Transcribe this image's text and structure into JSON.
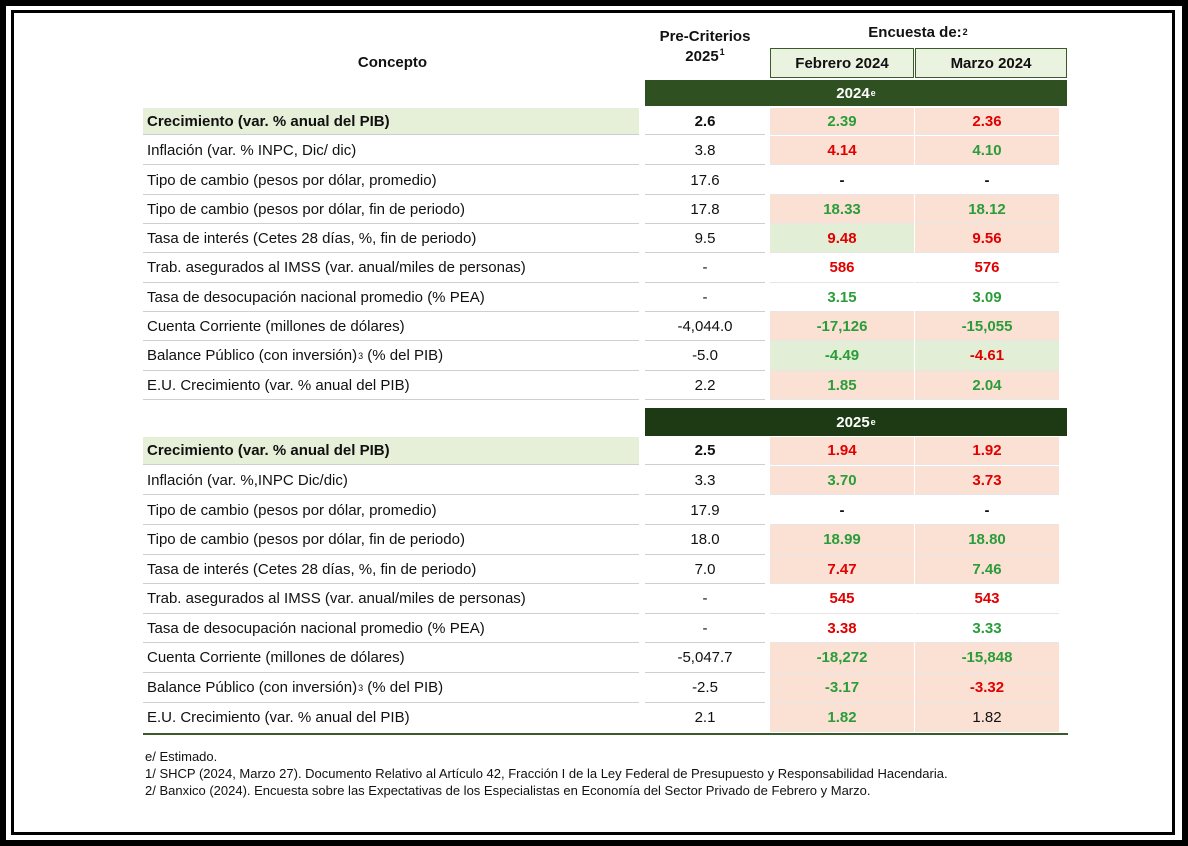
{
  "header": {
    "concepto": "Concepto",
    "pre_criterios_line1": "Pre-Criterios",
    "pre_criterios_line2": "2025",
    "pre_criterios_sup": "1",
    "encuesta": "Encuesta de:",
    "encuesta_sup": "2",
    "febrero": "Febrero 2024",
    "marzo": "Marzo 2024"
  },
  "sections": [
    {
      "year": "2024",
      "year_sup": "e",
      "rows": [
        {
          "label": "Crecimiento (var. % anual del PIB)",
          "precriterios": "2.6",
          "feb": "2.39",
          "mar": "2.36"
        },
        {
          "label": "Inflación (var. % INPC, Dic/ dic)",
          "precriterios": "3.8",
          "feb": "4.14",
          "mar": "4.10"
        },
        {
          "label": "Tipo de cambio (pesos por dólar, promedio)",
          "precriterios": "17.6",
          "feb": "-",
          "mar": "-"
        },
        {
          "label": "Tipo de cambio (pesos por dólar, fin de periodo)",
          "precriterios": "17.8",
          "feb": "18.33",
          "mar": "18.12"
        },
        {
          "label": "Tasa de interés (Cetes 28 días, %, fin de periodo)",
          "precriterios": "9.5",
          "feb": "9.48",
          "mar": "9.56"
        },
        {
          "label": "Trab. asegurados al IMSS (var. anual/miles de personas)",
          "precriterios": "-",
          "feb": "586",
          "mar": "576"
        },
        {
          "label": "Tasa de desocupación nacional promedio (% PEA)",
          "precriterios": "-",
          "feb": "3.15",
          "mar": "3.09"
        },
        {
          "label": "Cuenta Corriente (millones de dólares)",
          "precriterios": "-4,044.0",
          "feb": "-17,126",
          "mar": "-15,055"
        },
        {
          "label": "Balance Público (con inversión)",
          "label_sup": "3",
          "label_tail": " (% del PIB)",
          "precriterios": "-5.0",
          "feb": "-4.49",
          "mar": "-4.61"
        },
        {
          "label": "E.U. Crecimiento (var. % anual del PIB)",
          "precriterios": "2.2",
          "feb": "1.85",
          "mar": "2.04"
        }
      ]
    },
    {
      "year": "2025",
      "year_sup": "e",
      "rows": [
        {
          "label": "Crecimiento (var. % anual del PIB)",
          "precriterios": "2.5",
          "feb": "1.94",
          "mar": "1.92"
        },
        {
          "label": "Inflación (var. %,INPC  Dic/dic)",
          "precriterios": "3.3",
          "feb": "3.70",
          "mar": "3.73"
        },
        {
          "label": "Tipo de cambio (pesos por dólar, promedio)",
          "precriterios": "17.9",
          "feb": "-",
          "mar": "-"
        },
        {
          "label": "Tipo de cambio (pesos por dólar, fin de periodo)",
          "precriterios": "18.0",
          "feb": "18.99",
          "mar": "18.80"
        },
        {
          "label": "Tasa de interés (Cetes 28 días, %, fin de periodo)",
          "precriterios": "7.0",
          "feb": "7.47",
          "mar": "7.46"
        },
        {
          "label": "Trab. asegurados al IMSS (var. anual/miles de personas)",
          "precriterios": "-",
          "feb": "545",
          "mar": "543"
        },
        {
          "label": "Tasa de desocupación nacional promedio (% PEA)",
          "precriterios": "-",
          "feb": "3.38",
          "mar": "3.33"
        },
        {
          "label": "Cuenta Corriente (millones de dólares)",
          "precriterios": "-5,047.7",
          "feb": "-18,272",
          "mar": "-15,848"
        },
        {
          "label": "Balance Público (con inversión)",
          "label_sup": "3",
          "label_tail": " (% del PIB)",
          "precriterios": "-2.5",
          "feb": "-3.17",
          "mar": "-3.32"
        },
        {
          "label": "E.U. Crecimiento (var. % anual del PIB)",
          "precriterios": "2.1",
          "feb": "1.82",
          "mar": "1.82"
        }
      ]
    }
  ],
  "notes": [
    "e/ Estimado.",
    "1/ SHCP (2024, Marzo 27). Documento Relativo al Artículo 42, Fracción I de la Ley Federal de Presupuesto y Responsabilidad Hacendaria.",
    "2/ Banxico (2024). Encuesta sobre las Expectativas de los Especialistas en Economía del Sector Privado de Febrero y Marzo."
  ],
  "colors": {
    "header_dark_green": "#2f5021",
    "highlight_pink": "#fbe0d4",
    "highlight_green": "#e2efd6",
    "value_green": "#2a9d3a",
    "value_red": "#e00000"
  }
}
